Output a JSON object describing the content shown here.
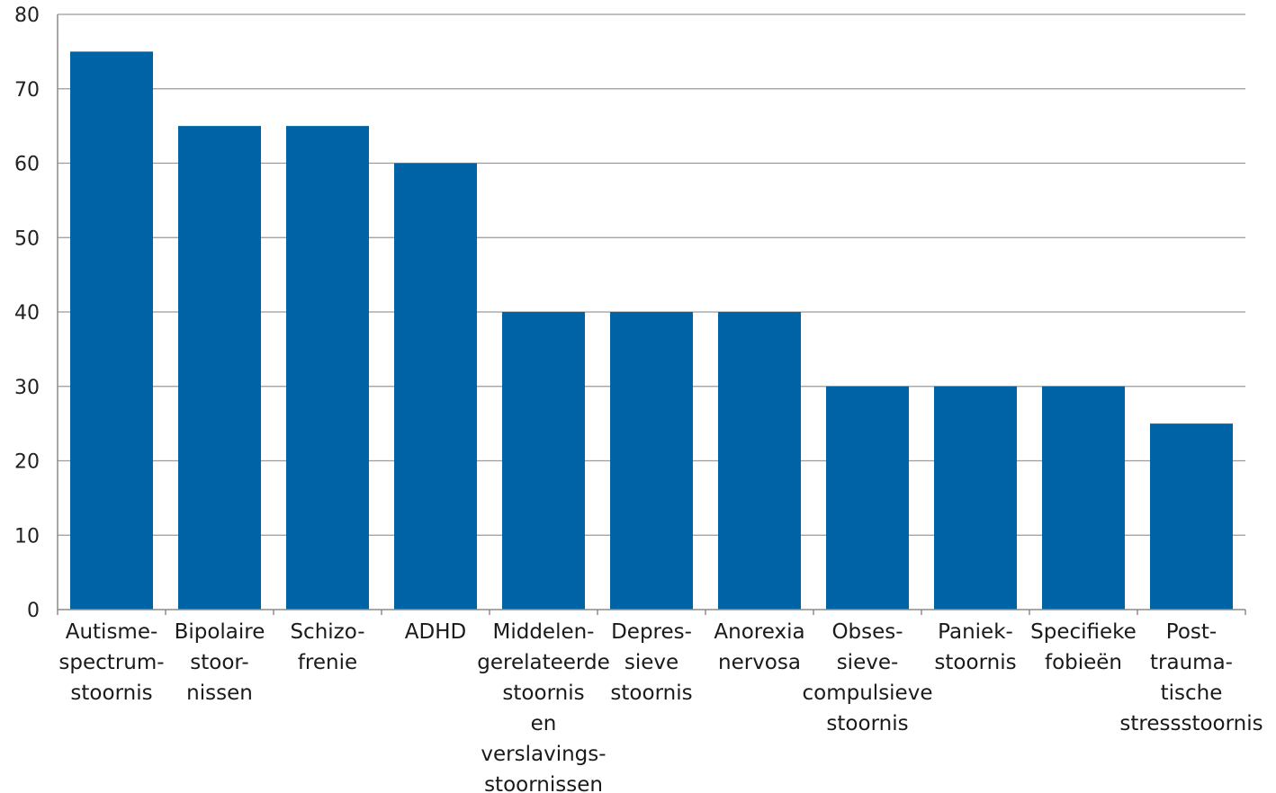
{
  "chart_data": {
    "type": "bar",
    "title": "",
    "xlabel": "",
    "ylabel": "",
    "ylim": [
      0,
      80
    ],
    "yticks": [
      0,
      10,
      20,
      30,
      40,
      50,
      60,
      70,
      80
    ],
    "grid": true,
    "bar_color": "#0063A6",
    "categories": [
      [
        "Autisme-",
        "spectrum-",
        "stoornis"
      ],
      [
        "Bipolaire",
        "stoor-",
        "nissen"
      ],
      [
        "Schizo-",
        "frenie"
      ],
      [
        "ADHD"
      ],
      [
        "Middelen-",
        "gerelateerde",
        "stoornis",
        "en",
        "verslavings-",
        "stoornissen"
      ],
      [
        "Depres-",
        "sieve",
        "stoornis"
      ],
      [
        "Anorexia",
        "nervosa"
      ],
      [
        "Obses-",
        "sieve-",
        "compulsieve",
        "stoornis"
      ],
      [
        "Paniek-",
        "stoornis"
      ],
      [
        "Specifieke",
        "fobieën"
      ],
      [
        "Post-",
        "trauma-",
        "tische",
        "stressstoornis"
      ]
    ],
    "values": [
      75,
      65,
      65,
      60,
      40,
      40,
      40,
      30,
      30,
      30,
      25
    ]
  }
}
